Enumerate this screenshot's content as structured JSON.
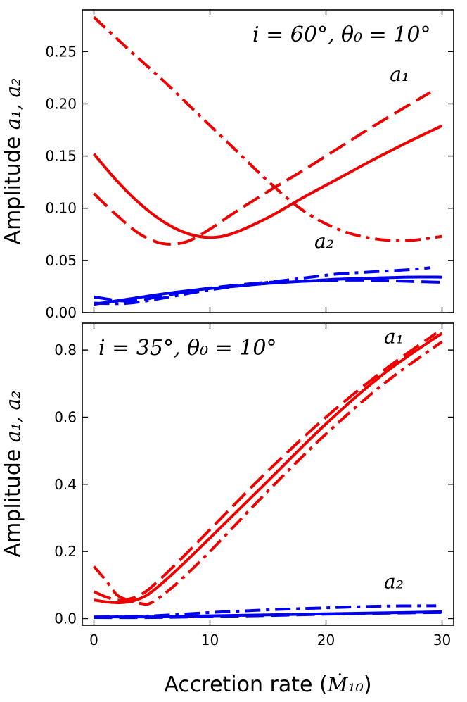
{
  "chart_data": [
    {
      "type": "line",
      "title": "",
      "annotation": "i = 60°, θ₀ = 10°",
      "ylabel_text": "Amplitude ",
      "ylabel_math": "a₁, a₂",
      "xlabel": "",
      "xlim": [
        -1,
        31
      ],
      "ylim": [
        0,
        0.29
      ],
      "yticks": [
        0.0,
        0.05,
        0.1,
        0.15,
        0.2,
        0.25
      ],
      "ytick_labels": [
        "0.00",
        "0.05",
        "0.10",
        "0.15",
        "0.20",
        "0.25"
      ],
      "xticks": [
        0,
        10,
        20,
        30
      ],
      "xtick_labels": [],
      "curve_labels": [
        {
          "text": "a₁",
          "x": 25.5,
          "y": 0.222
        },
        {
          "text": "a₂",
          "x": 19,
          "y": 0.062
        }
      ],
      "series": [
        {
          "name": "a1 solid",
          "color": "#ee0000",
          "dash": "solid",
          "x": [
            0,
            2,
            4,
            6,
            8,
            10,
            12,
            15,
            18,
            21,
            24,
            27,
            30
          ],
          "values": [
            0.152,
            0.126,
            0.104,
            0.087,
            0.076,
            0.072,
            0.076,
            0.091,
            0.11,
            0.128,
            0.146,
            0.163,
            0.179
          ]
        },
        {
          "name": "a1 dashed",
          "color": "#ee0000",
          "dash": "dashed",
          "x": [
            0,
            2,
            4,
            6,
            8,
            10,
            12,
            15,
            18,
            21,
            24,
            27,
            29
          ],
          "values": [
            0.114,
            0.093,
            0.075,
            0.066,
            0.068,
            0.08,
            0.095,
            0.116,
            0.136,
            0.157,
            0.178,
            0.198,
            0.211
          ]
        },
        {
          "name": "a1 dash-dot",
          "color": "#ee0000",
          "dash": "dashdot",
          "x": [
            0,
            3,
            6,
            9,
            12,
            15,
            18,
            21,
            24,
            27,
            30
          ],
          "values": [
            0.283,
            0.252,
            0.222,
            0.19,
            0.158,
            0.126,
            0.098,
            0.08,
            0.071,
            0.069,
            0.073
          ]
        },
        {
          "name": "a2 solid",
          "color": "#0000ee",
          "dash": "solid",
          "x": [
            0,
            3,
            6,
            9,
            12,
            15,
            18,
            21,
            24,
            27,
            30
          ],
          "values": [
            0.008,
            0.013,
            0.018,
            0.022,
            0.025,
            0.028,
            0.03,
            0.032,
            0.033,
            0.034,
            0.034
          ]
        },
        {
          "name": "a2 dashed",
          "color": "#0000ee",
          "dash": "dashed",
          "x": [
            0,
            3,
            6,
            9,
            12,
            15,
            18,
            21,
            24,
            27,
            30
          ],
          "values": [
            0.015,
            0.011,
            0.016,
            0.022,
            0.026,
            0.029,
            0.03,
            0.031,
            0.031,
            0.03,
            0.029
          ]
        },
        {
          "name": "a2 dash-dot",
          "color": "#0000ee",
          "dash": "dashdot",
          "x": [
            0,
            3,
            6,
            9,
            12,
            15,
            18,
            21,
            24,
            27,
            29
          ],
          "values": [
            0.009,
            0.009,
            0.014,
            0.02,
            0.025,
            0.029,
            0.033,
            0.037,
            0.039,
            0.041,
            0.043
          ]
        }
      ]
    },
    {
      "type": "line",
      "title": "",
      "annotation": "i = 35°, θ₀ = 10°",
      "ylabel_text": "Amplitude ",
      "ylabel_math": "a₁, a₂",
      "xlabel_text": "Accretion rate (",
      "xlabel_math": "Ṁ₁₀",
      "xlabel_end": ")",
      "xlim": [
        -1,
        31
      ],
      "ylim": [
        -0.02,
        0.88
      ],
      "yticks": [
        0.0,
        0.2,
        0.4,
        0.6,
        0.8
      ],
      "ytick_labels": [
        "0.0",
        "0.2",
        "0.4",
        "0.6",
        "0.8"
      ],
      "xticks": [
        0,
        10,
        20,
        30
      ],
      "xtick_labels": [
        "0",
        "10",
        "20",
        "30"
      ],
      "curve_labels": [
        {
          "text": "a₁",
          "x": 25,
          "y": 0.82
        },
        {
          "text": "a₂",
          "x": 25,
          "y": 0.09
        }
      ],
      "series": [
        {
          "name": "a1 solid",
          "color": "#ee0000",
          "dash": "solid",
          "x": [
            0,
            1,
            2,
            3,
            4,
            5,
            7,
            10,
            15,
            20,
            25,
            30
          ],
          "values": [
            0.055,
            0.05,
            0.047,
            0.05,
            0.06,
            0.08,
            0.14,
            0.24,
            0.41,
            0.58,
            0.73,
            0.85
          ]
        },
        {
          "name": "a1 dashed",
          "color": "#ee0000",
          "dash": "dashed",
          "x": [
            0,
            1,
            2,
            3,
            4,
            5,
            7,
            10,
            15,
            20,
            25,
            29.5
          ],
          "values": [
            0.08,
            0.065,
            0.055,
            0.058,
            0.07,
            0.095,
            0.16,
            0.265,
            0.44,
            0.6,
            0.74,
            0.85
          ]
        },
        {
          "name": "a1 dash-dot",
          "color": "#ee0000",
          "dash": "dashdot",
          "x": [
            0,
            1,
            2,
            3,
            4,
            5,
            7,
            10,
            15,
            20,
            25,
            30
          ],
          "values": [
            0.155,
            0.115,
            0.07,
            0.055,
            0.045,
            0.048,
            0.1,
            0.2,
            0.38,
            0.55,
            0.7,
            0.825
          ]
        },
        {
          "name": "a2 solid",
          "color": "#0000ee",
          "dash": "solid",
          "x": [
            0,
            5,
            10,
            15,
            20,
            25,
            30
          ],
          "values": [
            0.005,
            0.005,
            0.008,
            0.011,
            0.014,
            0.017,
            0.02
          ]
        },
        {
          "name": "a2 dashed",
          "color": "#0000ee",
          "dash": "dashed",
          "x": [
            0,
            5,
            10,
            15,
            20,
            25,
            30
          ],
          "values": [
            0.003,
            0.003,
            0.006,
            0.009,
            0.013,
            0.016,
            0.018
          ]
        },
        {
          "name": "a2 dash-dot",
          "color": "#0000ee",
          "dash": "dashdot",
          "x": [
            0,
            5,
            10,
            15,
            20,
            25,
            29.5
          ],
          "values": [
            0.004,
            0.008,
            0.018,
            0.026,
            0.032,
            0.037,
            0.038
          ]
        }
      ]
    }
  ]
}
